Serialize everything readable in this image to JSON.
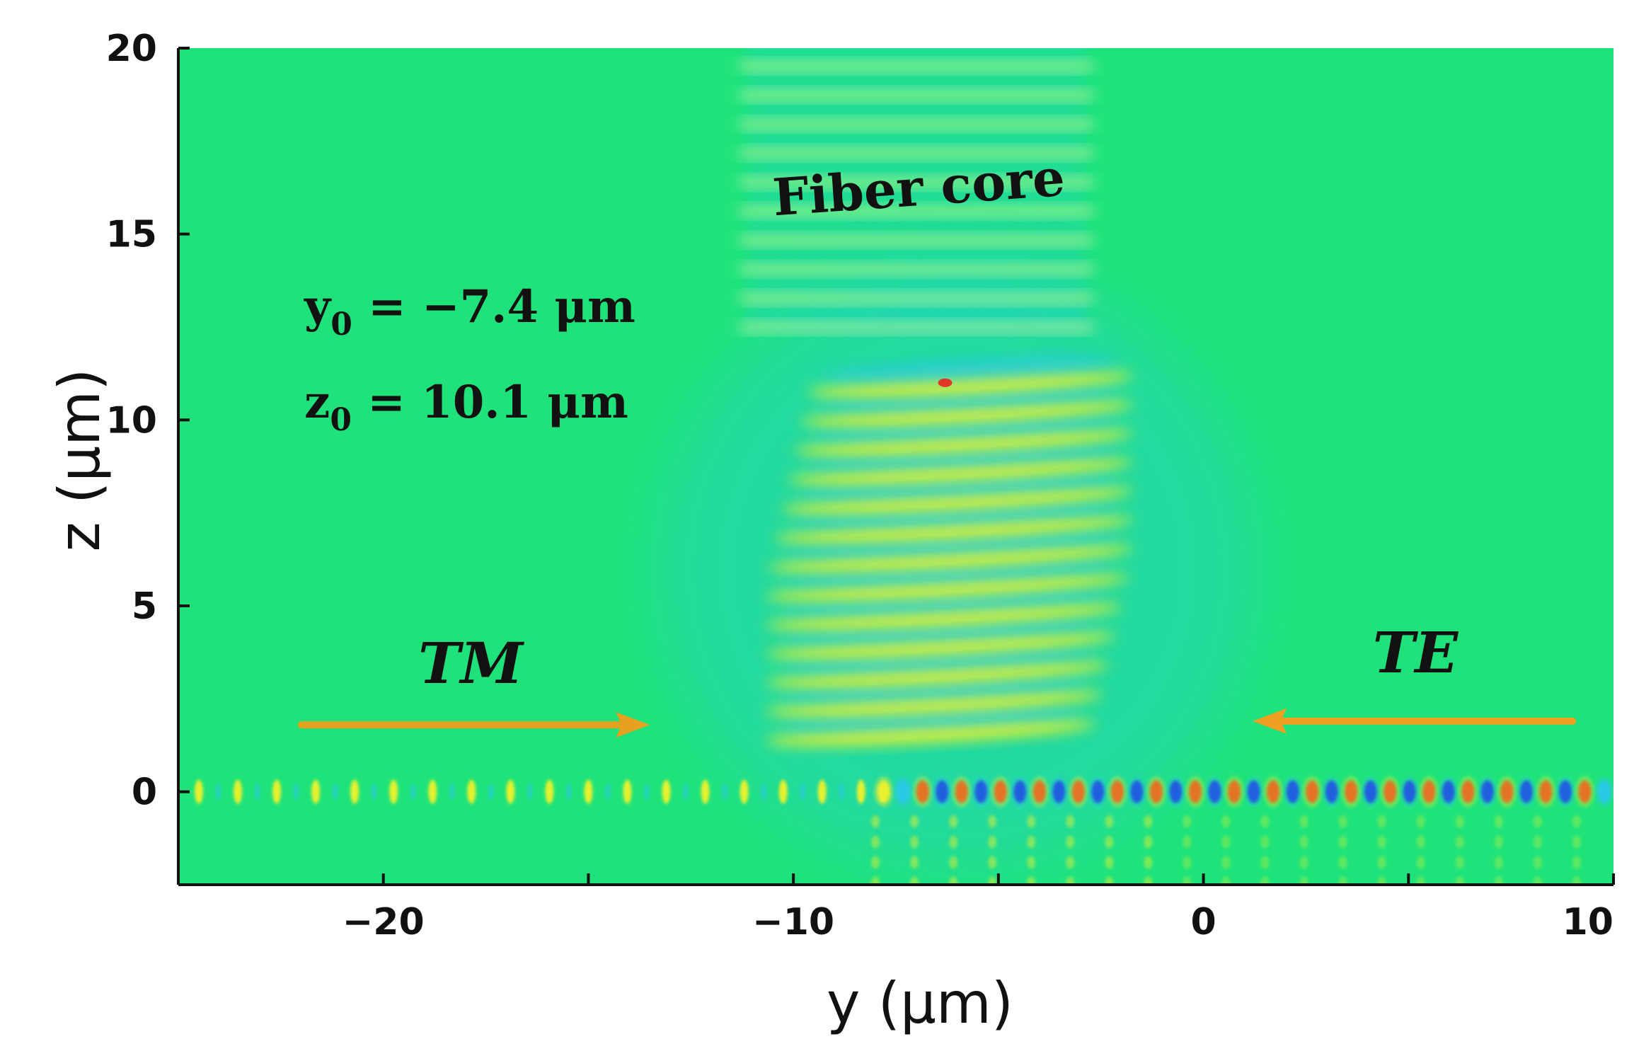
{
  "chart_data": {
    "type": "heatmap",
    "title": "",
    "xlabel": "y (μm)",
    "ylabel": "z (μm)",
    "xlim": [
      -25,
      10
    ],
    "ylim": [
      -2.5,
      20
    ],
    "xticks": [
      -20,
      -10,
      0,
      10
    ],
    "xtick_labels": [
      "−20",
      "−10",
      "0",
      "10"
    ],
    "xtick_minor": [
      -15,
      -5,
      5
    ],
    "yticks": [
      0,
      5,
      10,
      15,
      20
    ],
    "ytick_labels": [
      "0",
      "5",
      "10",
      "15",
      "20"
    ],
    "colormap": {
      "background": "#1fe37a",
      "positive": "#f2f22a",
      "negative": "#2ac9e8",
      "strong_positive": "#e8261e",
      "strong_negative": "#1c1ce0"
    },
    "regions": [
      {
        "name": "fiber_core",
        "y_range": [
          -11.5,
          -2.5
        ],
        "z_range": [
          0,
          20
        ],
        "label": "Fiber core"
      },
      {
        "name": "waveguide",
        "z_value": 0
      }
    ],
    "waveguide_mode": {
      "z": 0,
      "tm_y_range": [
        -25,
        -8
      ],
      "te_y_range": [
        -8,
        10
      ],
      "period_um": 0.95
    },
    "coupling_point": {
      "y0": -7.4,
      "z0": 10.1
    },
    "annotations": {
      "fiber_core": "Fiber core",
      "y0_symbol": "y",
      "y0_subscript": "0",
      "y0_text": " = −7.4 μm",
      "z0_symbol": "z",
      "z0_subscript": "0",
      "z0_text": " = 10.1 μm",
      "tm": "TM",
      "te": "TE"
    },
    "arrows": [
      {
        "label": "TM",
        "from_y": -22,
        "to_y": -13.5,
        "z": 1.8,
        "direction": "right",
        "color": "#e8a020"
      },
      {
        "label": "TE",
        "from_y": 9,
        "to_y": 1.2,
        "z": 1.9,
        "direction": "left",
        "color": "#f0a020"
      }
    ]
  }
}
